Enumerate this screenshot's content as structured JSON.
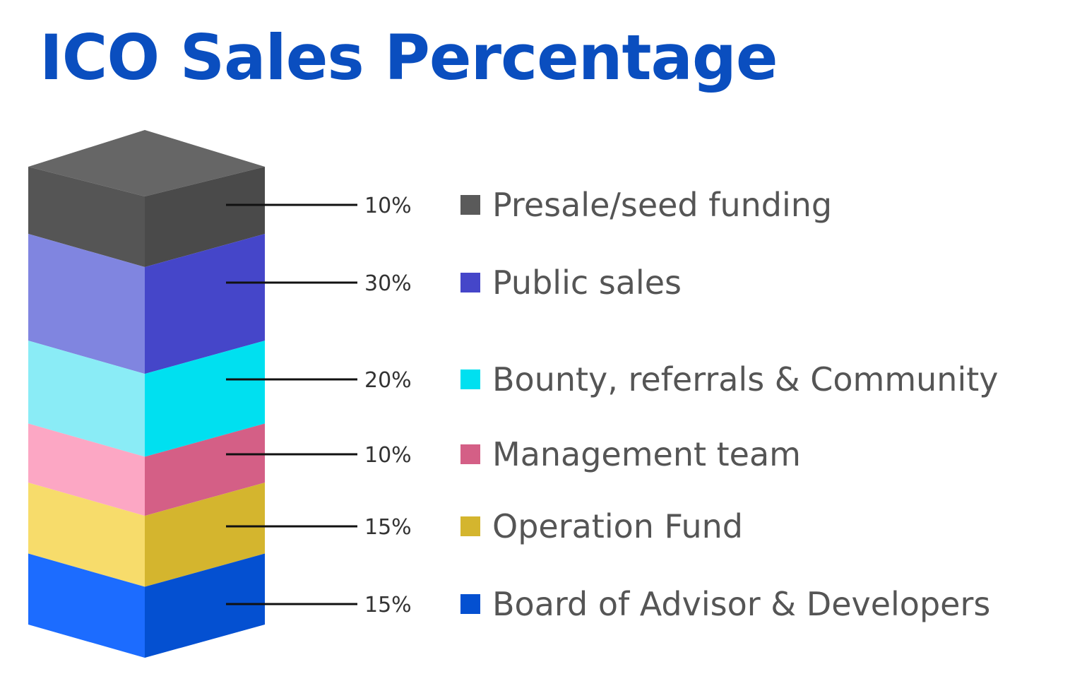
{
  "title": "ICO Sales Percentage",
  "chart_data": {
    "type": "bar",
    "stacked": true,
    "orientation": "vertical",
    "title": "ICO Sales Percentage",
    "unit": "%",
    "legend_position": "right",
    "segments": [
      {
        "label": "Presale/seed funding",
        "value": 10,
        "value_label": "10%",
        "color": "#5a5a5a",
        "front_color": "#555555",
        "side_color": "#4a4a4a"
      },
      {
        "label": "Public sales",
        "value": 30,
        "value_label": "30%",
        "color": "#4546c9",
        "front_color": "#8085e0",
        "side_color": "#4546c9"
      },
      {
        "label": "Bounty, referrals & Community",
        "value": 20,
        "value_label": "20%",
        "color": "#00e0f0",
        "front_color": "#8aecf6",
        "side_color": "#00e0f0"
      },
      {
        "label": "Management team",
        "value": 10,
        "value_label": "10%",
        "color": "#d45f86",
        "front_color": "#fca7c4",
        "side_color": "#d45f86"
      },
      {
        "label": "Operation Fund",
        "value": 15,
        "value_label": "15%",
        "color": "#d4b52e",
        "front_color": "#f7dc6b",
        "side_color": "#d4b52e"
      },
      {
        "label": "Board of Advisor & Developers",
        "value": 15,
        "value_label": "15%",
        "color": "#0450d1",
        "front_color": "#1c6cff",
        "side_color": "#0450d1"
      }
    ],
    "top_color": "#5a5a5a"
  }
}
